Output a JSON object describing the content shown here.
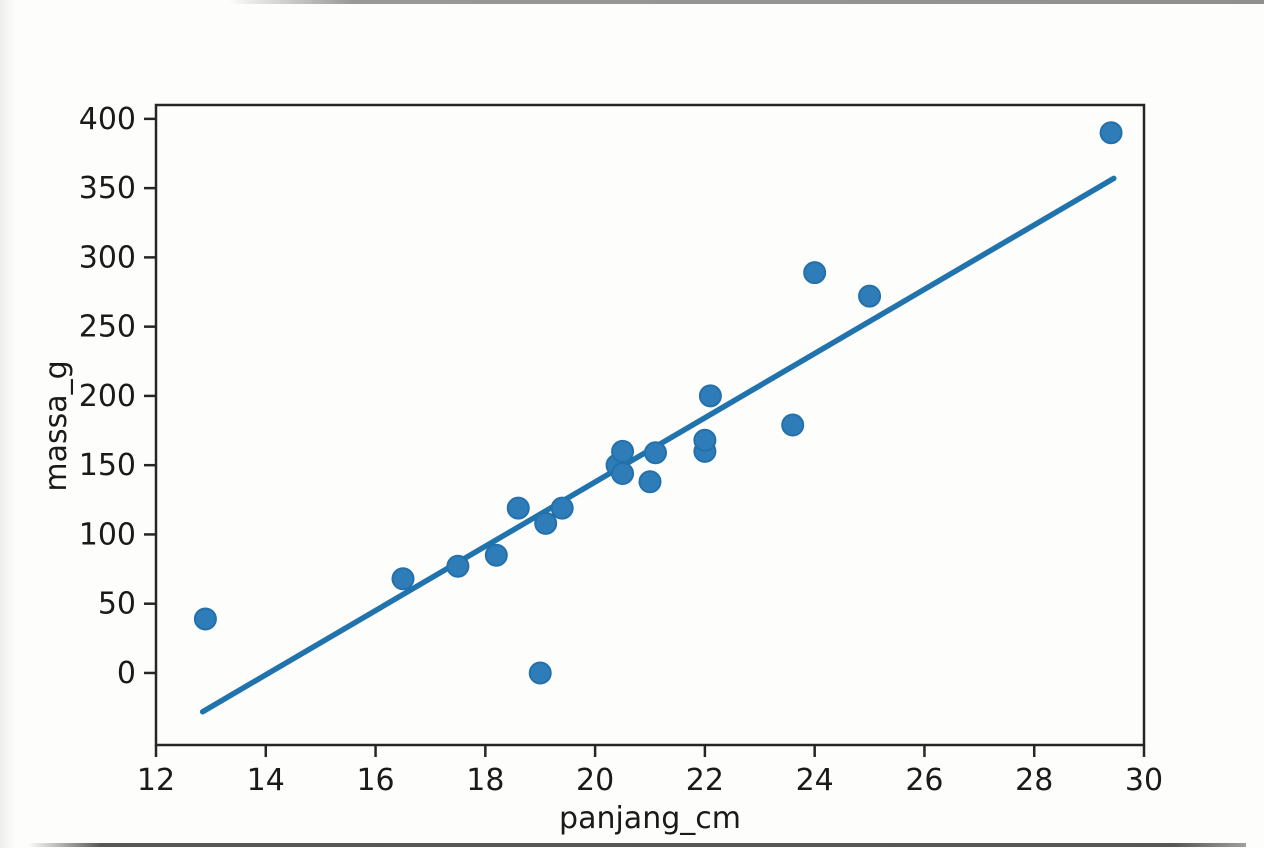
{
  "figure": {
    "xlabel": "panjang_cm",
    "ylabel": "massa_g"
  },
  "chart_data": {
    "type": "scatter",
    "title": "",
    "xlabel": "panjang_cm",
    "ylabel": "massa_g",
    "xlim": [
      12,
      30
    ],
    "ylim": [
      -52,
      410
    ],
    "x_ticks": [
      12,
      14,
      16,
      18,
      20,
      22,
      24,
      26,
      28,
      30
    ],
    "y_ticks": [
      0,
      50,
      100,
      150,
      200,
      250,
      300,
      350,
      400
    ],
    "grid": false,
    "legend": "none",
    "series": [
      {
        "name": "observations",
        "type": "scatter",
        "points": [
          [
            12.9,
            39
          ],
          [
            16.5,
            68
          ],
          [
            17.5,
            77
          ],
          [
            18.2,
            85
          ],
          [
            18.6,
            119
          ],
          [
            19.0,
            0
          ],
          [
            19.1,
            108
          ],
          [
            19.4,
            119
          ],
          [
            20.4,
            150
          ],
          [
            20.5,
            144
          ],
          [
            20.5,
            160
          ],
          [
            21.0,
            138
          ],
          [
            21.1,
            159
          ],
          [
            22.0,
            160
          ],
          [
            22.0,
            168
          ],
          [
            22.1,
            200
          ],
          [
            23.6,
            179
          ],
          [
            24.0,
            289
          ],
          [
            25.0,
            272
          ],
          [
            29.4,
            390
          ]
        ]
      },
      {
        "name": "regression-line",
        "type": "line",
        "points": [
          [
            12.85,
            -28
          ],
          [
            29.45,
            357
          ]
        ]
      }
    ],
    "colors": {
      "point_fill": "#2f7db8",
      "point_edge": "#2470ab",
      "line": "#2173ae",
      "axis": "#262626",
      "text": "#1a1a1a"
    }
  }
}
